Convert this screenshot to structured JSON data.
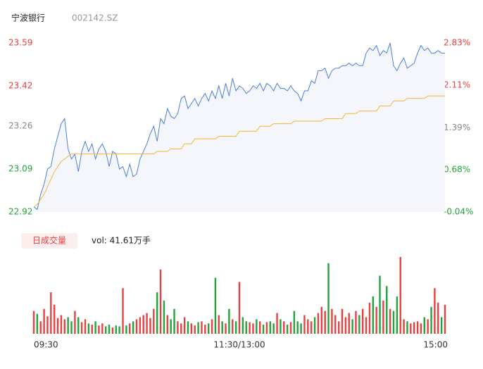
{
  "header": {
    "title": "宁波银行",
    "code": "002142.SZ"
  },
  "chart_data": {
    "type": "line",
    "x": [
      0,
      2,
      4,
      6,
      8,
      10,
      12,
      14,
      16,
      18,
      20,
      22,
      24,
      26,
      28,
      30,
      32,
      34,
      36,
      38,
      40,
      42,
      44,
      46,
      48,
      50,
      52,
      54,
      56,
      58,
      60,
      62,
      64,
      66,
      68,
      70,
      72,
      74,
      76,
      78,
      80,
      82,
      84,
      86,
      88,
      90,
      92,
      94,
      96,
      98,
      100,
      102,
      104,
      106,
      108,
      110,
      112,
      114,
      116,
      118,
      120,
      122,
      124,
      126,
      128,
      130,
      132,
      134,
      136,
      138,
      140,
      142,
      144,
      146,
      148,
      150,
      152,
      154,
      156,
      158,
      160,
      162,
      164,
      166,
      168,
      170,
      172,
      174,
      176,
      178,
      180,
      182,
      184,
      186,
      188,
      190,
      192,
      194,
      196,
      198,
      200,
      202,
      204,
      206,
      208,
      210,
      212,
      214,
      216,
      218,
      220,
      222,
      224,
      226,
      228,
      230,
      232,
      234,
      236,
      238,
      240
    ],
    "xlim": [
      0,
      240
    ],
    "xticks": [
      {
        "value": 0,
        "label": "09:30"
      },
      {
        "value": 120,
        "label": "11:30/13:00"
      },
      {
        "value": 240,
        "label": "15:00"
      }
    ],
    "ylim": [
      22.92,
      23.59
    ],
    "yticks": [
      23.59,
      23.42,
      23.26,
      23.09,
      22.92
    ],
    "ytick_colors": [
      "#e84040",
      "#e84040",
      "#888888",
      "#23a33a",
      "#23a33a"
    ],
    "y2lim": [
      -0.04,
      2.83
    ],
    "y2ticks": [
      {
        "value": 2.83,
        "label": "2.83%"
      },
      {
        "value": 2.11,
        "label": "2.11%"
      },
      {
        "value": 1.39,
        "label": "1.39%"
      },
      {
        "value": 0.68,
        "label": "0.68%"
      },
      {
        "value": -0.04,
        "label": "-0.04%"
      }
    ],
    "grid": false,
    "series": [
      {
        "color": "#4a7fe0",
        "values": [
          22.94,
          22.93,
          22.99,
          23.03,
          23.09,
          23.1,
          23.17,
          23.22,
          23.27,
          23.29,
          23.17,
          23.13,
          23.15,
          23.08,
          23.16,
          23.2,
          23.16,
          23.19,
          23.13,
          23.17,
          23.19,
          23.16,
          23.1,
          23.16,
          23.15,
          23.09,
          23.1,
          23.06,
          23.11,
          23.06,
          23.07,
          23.13,
          23.16,
          23.19,
          23.23,
          23.26,
          23.2,
          23.29,
          23.27,
          23.33,
          23.3,
          23.29,
          23.31,
          23.37,
          23.38,
          23.33,
          23.35,
          23.37,
          23.34,
          23.37,
          23.39,
          23.36,
          23.4,
          23.37,
          23.42,
          23.37,
          23.43,
          23.38,
          23.45,
          23.4,
          23.42,
          23.41,
          23.39,
          23.4,
          23.42,
          23.41,
          23.43,
          23.4,
          23.43,
          23.42,
          23.4,
          23.43,
          23.41,
          23.41,
          23.4,
          23.42,
          23.4,
          23.39,
          23.36,
          23.4,
          23.4,
          23.44,
          23.43,
          23.48,
          23.48,
          23.49,
          23.45,
          23.48,
          23.49,
          23.49,
          23.5,
          23.5,
          23.51,
          23.5,
          23.51,
          23.5,
          23.5,
          23.55,
          23.57,
          23.56,
          23.58,
          23.54,
          23.56,
          23.55,
          23.59,
          23.5,
          23.48,
          23.51,
          23.53,
          23.49,
          23.5,
          23.51,
          23.55,
          23.58,
          23.56,
          23.57,
          23.55,
          23.55,
          23.56,
          23.55,
          23.55
        ]
      },
      {
        "color": "#f5b731",
        "values": [
          22.94,
          22.95,
          22.97,
          22.99,
          23.02,
          23.05,
          23.08,
          23.1,
          23.12,
          23.13,
          23.14,
          23.15,
          23.15,
          23.15,
          23.15,
          23.15,
          23.15,
          23.15,
          23.15,
          23.15,
          23.15,
          23.15,
          23.15,
          23.15,
          23.15,
          23.15,
          23.15,
          23.15,
          23.15,
          23.15,
          23.15,
          23.15,
          23.15,
          23.15,
          23.15,
          23.15,
          23.16,
          23.16,
          23.16,
          23.16,
          23.17,
          23.17,
          23.17,
          23.17,
          23.19,
          23.19,
          23.19,
          23.21,
          23.21,
          23.21,
          23.21,
          23.21,
          23.21,
          23.21,
          23.22,
          23.22,
          23.22,
          23.22,
          23.22,
          23.22,
          23.24,
          23.24,
          23.24,
          23.24,
          23.24,
          23.24,
          23.26,
          23.26,
          23.26,
          23.26,
          23.27,
          23.27,
          23.27,
          23.27,
          23.27,
          23.27,
          23.28,
          23.28,
          23.28,
          23.28,
          23.28,
          23.28,
          23.28,
          23.28,
          23.28,
          23.29,
          23.29,
          23.29,
          23.29,
          23.29,
          23.29,
          23.31,
          23.31,
          23.31,
          23.31,
          23.32,
          23.32,
          23.32,
          23.32,
          23.32,
          23.32,
          23.34,
          23.34,
          23.34,
          23.34,
          23.36,
          23.36,
          23.36,
          23.36,
          23.37,
          23.37,
          23.37,
          23.37,
          23.37,
          23.37,
          23.38,
          23.38,
          23.38,
          23.38,
          23.38,
          23.38
        ]
      }
    ],
    "volume": {
      "button": "日成交量",
      "label": "vol: 41.61万手",
      "ylim": [
        0,
        1.9
      ],
      "up_color": "#e84040",
      "down_color": "#23a33a",
      "values": [
        0.55,
        0.48,
        0.3,
        0.6,
        0.42,
        1.0,
        0.7,
        0.38,
        0.45,
        0.35,
        0.4,
        0.3,
        0.55,
        0.4,
        0.28,
        0.35,
        0.25,
        0.22,
        0.3,
        0.2,
        0.25,
        0.18,
        0.22,
        0.15,
        0.2,
        0.18,
        1.1,
        0.2,
        0.25,
        0.3,
        0.35,
        0.4,
        0.45,
        0.5,
        0.38,
        0.6,
        1.0,
        1.55,
        0.8,
        0.45,
        0.35,
        0.6,
        0.3,
        0.25,
        0.4,
        0.3,
        0.25,
        0.2,
        0.28,
        0.3,
        0.22,
        0.25,
        0.35,
        1.35,
        0.45,
        0.3,
        0.25,
        0.6,
        0.35,
        0.3,
        1.25,
        0.4,
        0.3,
        0.28,
        0.25,
        0.35,
        0.3,
        0.22,
        0.28,
        0.3,
        0.25,
        0.5,
        0.35,
        0.3,
        0.22,
        0.28,
        0.55,
        0.3,
        0.25,
        0.45,
        0.35,
        0.3,
        0.4,
        0.5,
        0.65,
        0.55,
        1.7,
        0.6,
        0.45,
        0.3,
        0.6,
        0.4,
        0.5,
        0.35,
        0.55,
        0.45,
        0.6,
        0.4,
        0.75,
        0.9,
        0.65,
        1.4,
        0.8,
        1.15,
        0.6,
        0.55,
        0.9,
        1.85,
        0.35,
        0.3,
        0.25,
        0.28,
        0.3,
        0.25,
        0.4,
        0.35,
        0.65,
        1.1,
        0.75,
        0.4,
        0.7
      ]
    }
  }
}
